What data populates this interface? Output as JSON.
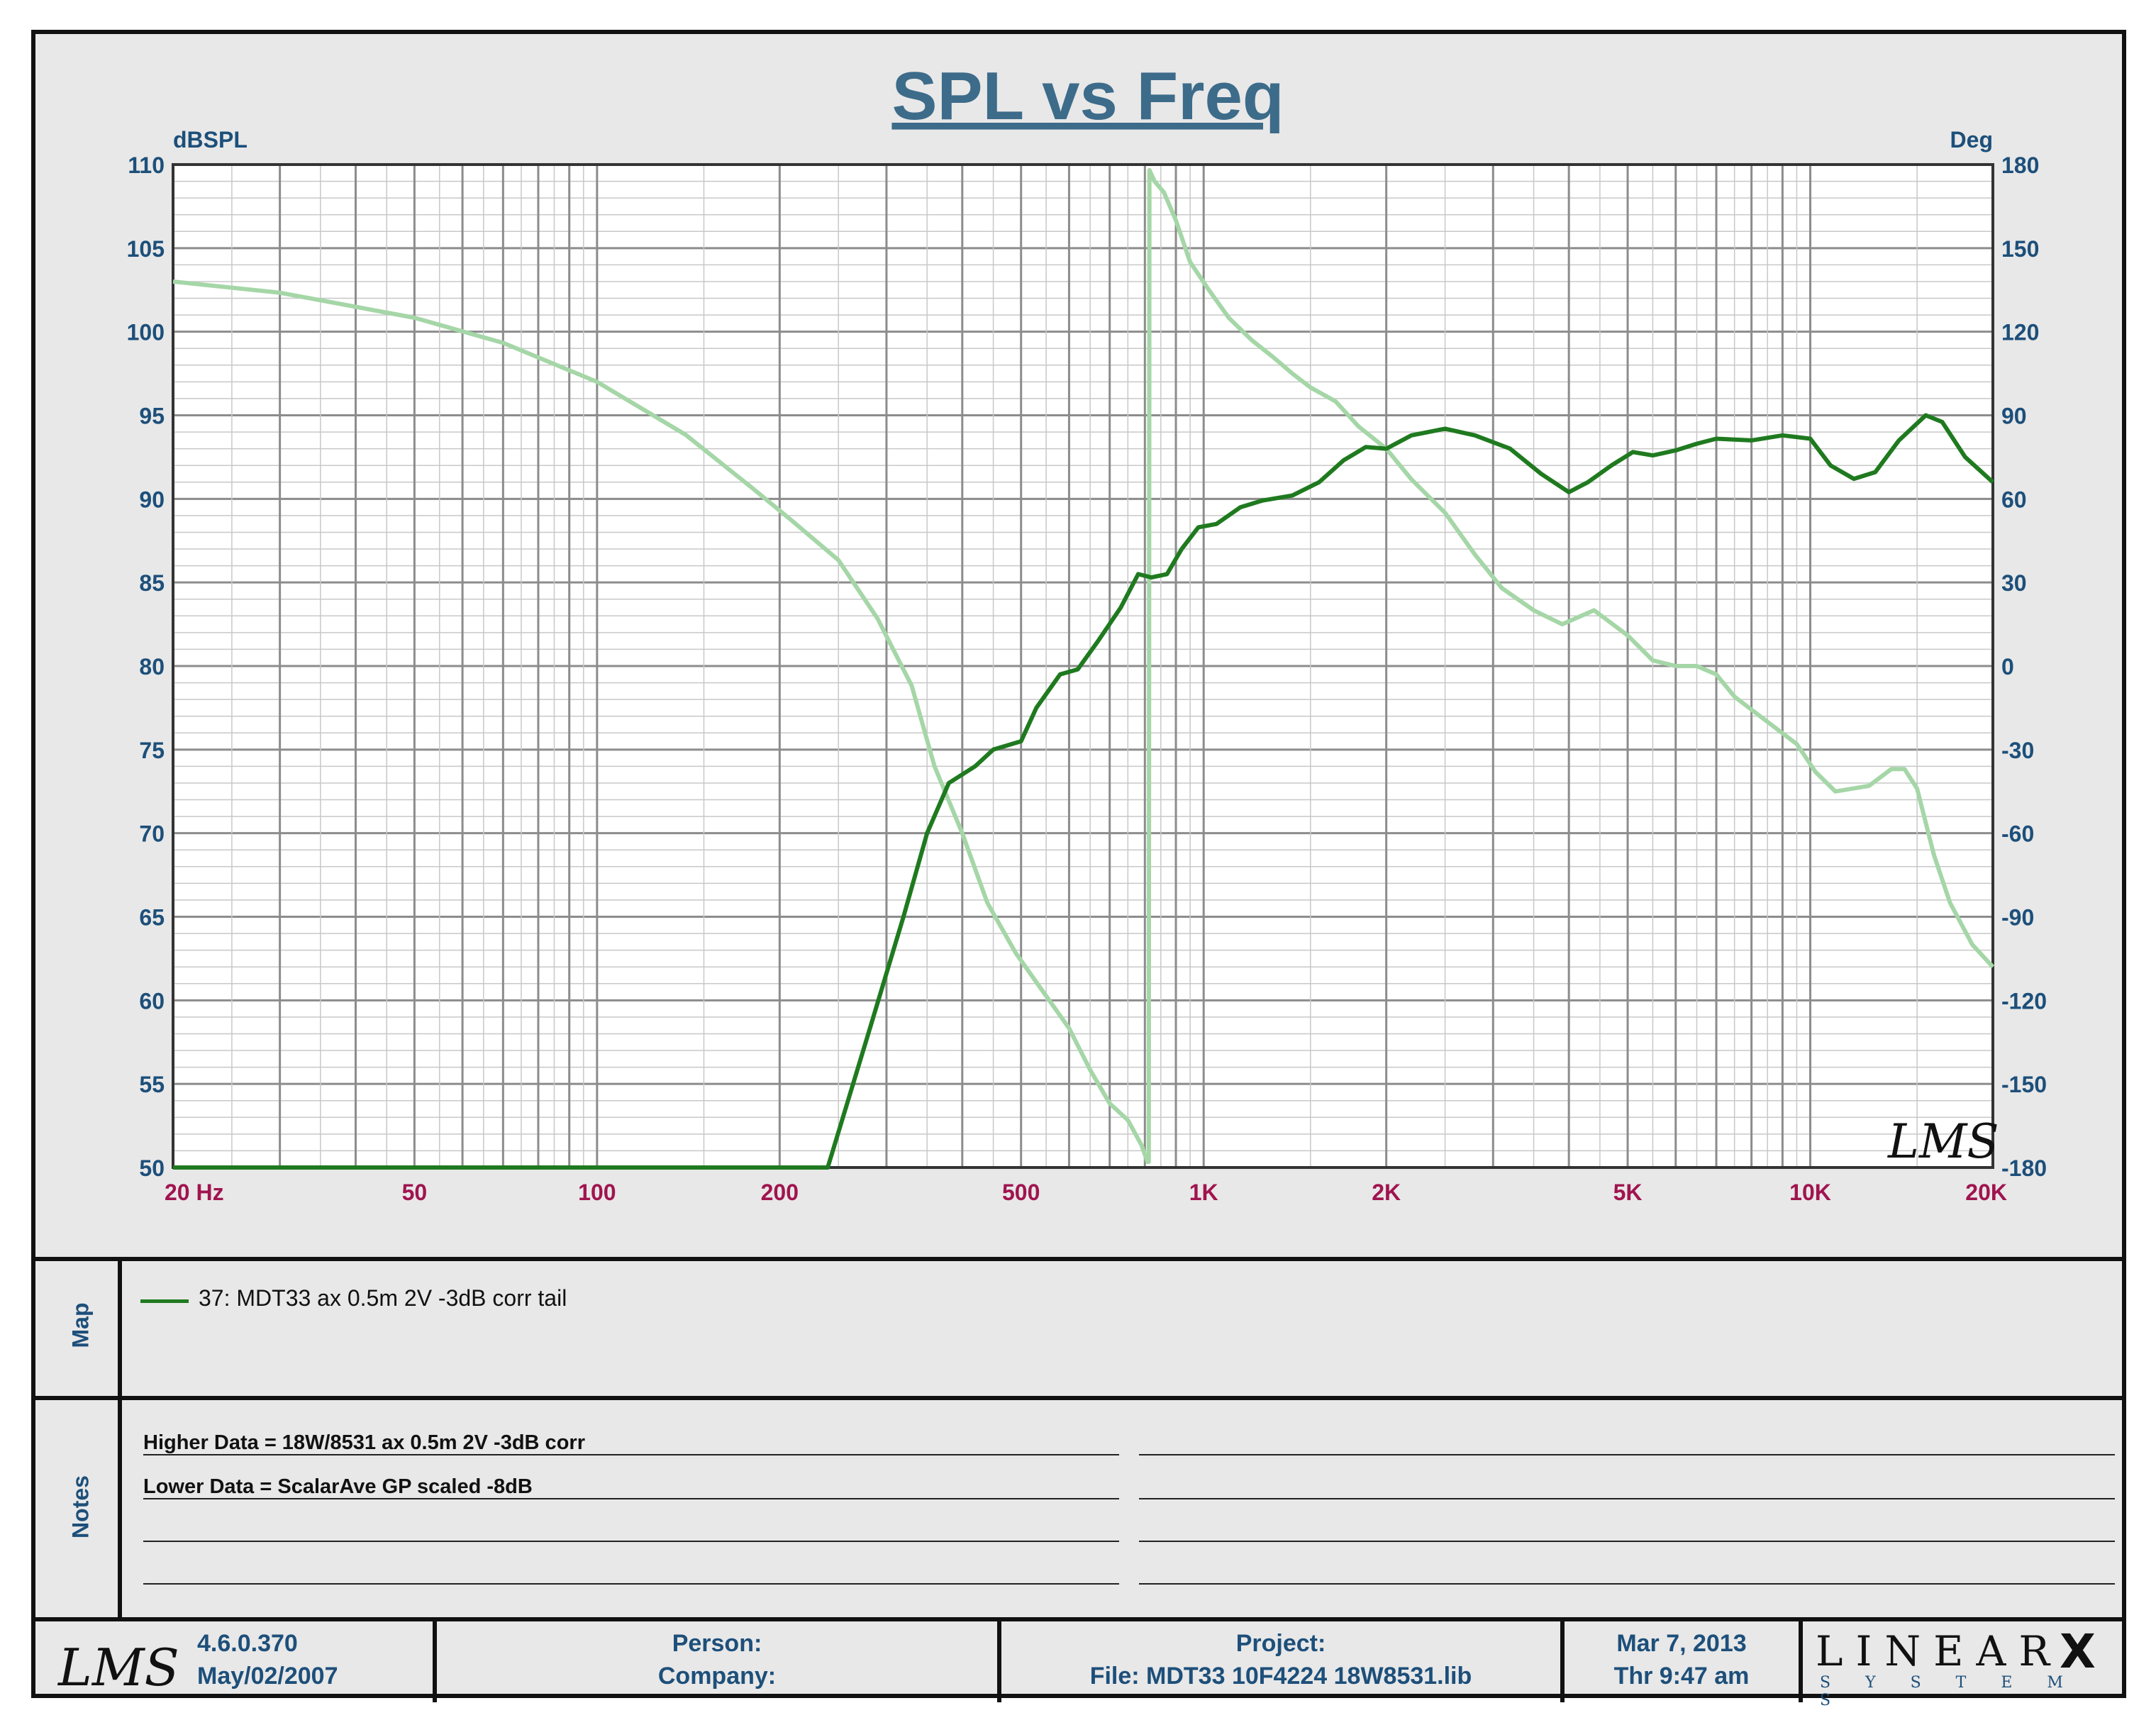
{
  "chart_data": {
    "type": "line",
    "title": "SPL vs Freq",
    "x_scale": "log",
    "xlim": [
      20,
      20000
    ],
    "x_ticks": [
      {
        "value": 20,
        "label": "20  Hz"
      },
      {
        "value": 50,
        "label": "50"
      },
      {
        "value": 100,
        "label": "100"
      },
      {
        "value": 200,
        "label": "200"
      },
      {
        "value": 500,
        "label": "500"
      },
      {
        "value": 1000,
        "label": "1K"
      },
      {
        "value": 2000,
        "label": "2K"
      },
      {
        "value": 5000,
        "label": "5K"
      },
      {
        "value": 10000,
        "label": "10K"
      },
      {
        "value": 20000,
        "label": "20K"
      }
    ],
    "ylabel": "dBSPL",
    "ylim": [
      50,
      110
    ],
    "y_ticks": [
      110,
      105,
      100,
      95,
      90,
      85,
      80,
      75,
      70,
      65,
      60,
      55,
      50
    ],
    "y2label": "Deg",
    "y2lim": [
      -180,
      180
    ],
    "y2_ticks": [
      180,
      150,
      120,
      90,
      60,
      30,
      0,
      -30,
      -60,
      -90,
      -120,
      -150,
      -180
    ],
    "grid": true,
    "series": [
      {
        "name": "37: MDT33 ax 0.5m 2V -3dB corr tail",
        "axis": "left",
        "color": "#1f7a1f",
        "points": [
          [
            20,
            50
          ],
          [
            240,
            50
          ],
          [
            280,
            58
          ],
          [
            320,
            65
          ],
          [
            350,
            70
          ],
          [
            380,
            73
          ],
          [
            420,
            74
          ],
          [
            450,
            75
          ],
          [
            500,
            75.5
          ],
          [
            530,
            77.5
          ],
          [
            580,
            79.5
          ],
          [
            620,
            79.8
          ],
          [
            670,
            81.5
          ],
          [
            730,
            83.5
          ],
          [
            780,
            85.5
          ],
          [
            820,
            85.3
          ],
          [
            870,
            85.5
          ],
          [
            920,
            87
          ],
          [
            980,
            88.3
          ],
          [
            1050,
            88.5
          ],
          [
            1150,
            89.5
          ],
          [
            1250,
            89.9
          ],
          [
            1400,
            90.2
          ],
          [
            1550,
            91
          ],
          [
            1700,
            92.3
          ],
          [
            1850,
            93.1
          ],
          [
            2000,
            93
          ],
          [
            2200,
            93.8
          ],
          [
            2500,
            94.2
          ],
          [
            2800,
            93.8
          ],
          [
            3200,
            93
          ],
          [
            3600,
            91.5
          ],
          [
            4000,
            90.4
          ],
          [
            4300,
            91
          ],
          [
            4700,
            92
          ],
          [
            5100,
            92.8
          ],
          [
            5500,
            92.6
          ],
          [
            6000,
            92.9
          ],
          [
            6500,
            93.3
          ],
          [
            7000,
            93.6
          ],
          [
            8000,
            93.5
          ],
          [
            9000,
            93.8
          ],
          [
            10000,
            93.6
          ],
          [
            10800,
            92
          ],
          [
            11800,
            91.2
          ],
          [
            12800,
            91.6
          ],
          [
            14000,
            93.5
          ],
          [
            15500,
            95
          ],
          [
            16500,
            94.6
          ],
          [
            18000,
            92.5
          ],
          [
            20000,
            91
          ]
        ]
      },
      {
        "name": "",
        "axis": "right",
        "color": "#a5d6a7",
        "points": [
          [
            20,
            138
          ],
          [
            30,
            134
          ],
          [
            50,
            125
          ],
          [
            70,
            116
          ],
          [
            100,
            102
          ],
          [
            140,
            83
          ],
          [
            180,
            64
          ],
          [
            210,
            52
          ],
          [
            250,
            38
          ],
          [
            290,
            17
          ],
          [
            330,
            -7
          ],
          [
            360,
            -36
          ],
          [
            400,
            -60
          ],
          [
            440,
            -85
          ],
          [
            490,
            -103
          ],
          [
            540,
            -116
          ],
          [
            600,
            -130
          ],
          [
            650,
            -145
          ],
          [
            700,
            -157
          ],
          [
            750,
            -163
          ],
          [
            790,
            -172
          ],
          [
            808,
            -178
          ],
          [
            812,
            -178
          ],
          [
            814,
            178
          ],
          [
            830,
            174
          ],
          [
            860,
            170
          ],
          [
            900,
            160
          ],
          [
            950,
            145
          ],
          [
            1020,
            135
          ],
          [
            1100,
            125
          ],
          [
            1200,
            117
          ],
          [
            1300,
            111
          ],
          [
            1400,
            105
          ],
          [
            1500,
            100
          ],
          [
            1650,
            95
          ],
          [
            1800,
            86
          ],
          [
            2000,
            78
          ],
          [
            2200,
            67
          ],
          [
            2500,
            55
          ],
          [
            2800,
            40
          ],
          [
            3100,
            28
          ],
          [
            3500,
            20
          ],
          [
            3900,
            15
          ],
          [
            4400,
            20
          ],
          [
            5000,
            11
          ],
          [
            5500,
            2
          ],
          [
            6000,
            0
          ],
          [
            6500,
            0
          ],
          [
            7000,
            -3
          ],
          [
            7500,
            -11
          ],
          [
            8500,
            -20
          ],
          [
            9500,
            -28
          ],
          [
            10200,
            -38
          ],
          [
            11000,
            -45
          ],
          [
            12500,
            -43
          ],
          [
            13600,
            -37
          ],
          [
            14300,
            -37
          ],
          [
            15000,
            -44
          ],
          [
            16000,
            -68
          ],
          [
            17000,
            -85
          ],
          [
            18500,
            -100
          ],
          [
            20000,
            -108
          ]
        ]
      }
    ]
  },
  "map_panel": {
    "label": "Map",
    "legend_entry": "37: MDT33 ax 0.5m 2V -3dB corr tail"
  },
  "notes_panel": {
    "label": "Notes",
    "line1": "Higher Data = 18W/8531 ax 0.5m 2V -3dB corr",
    "line2": "Lower  Data = ScalarAve GP scaled -8dB"
  },
  "footer": {
    "version": "4.6.0.370",
    "version_date": "May/02/2007",
    "person_label": "Person:",
    "company_label": "Company:",
    "project_label": "Project:",
    "file_label": "File: MDT33 10F4224 18W8531.lib",
    "date": "Mar  7, 2013",
    "time": "Thr  9:47 am",
    "brand_top": "LINEAR",
    "brand_x": "X",
    "brand_bottom": "S Y S T E M S"
  },
  "logo": "LMS"
}
